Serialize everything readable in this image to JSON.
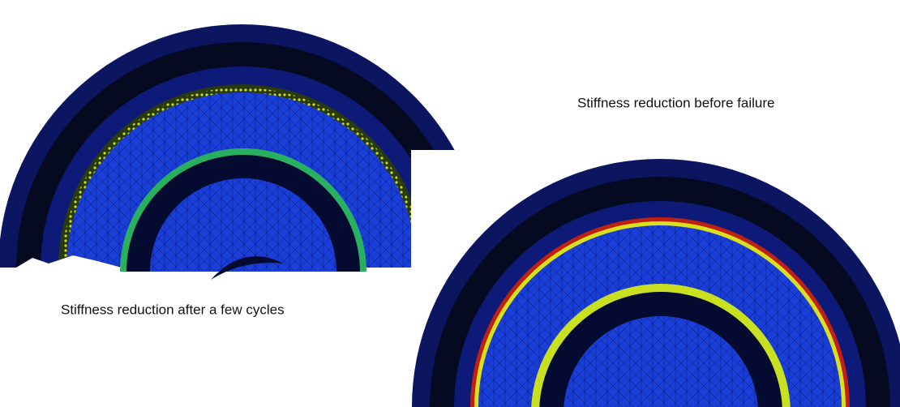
{
  "captions": {
    "left": "Stiffness reduction after a few cycles",
    "right": "Stiffness reduction before failure"
  }
}
